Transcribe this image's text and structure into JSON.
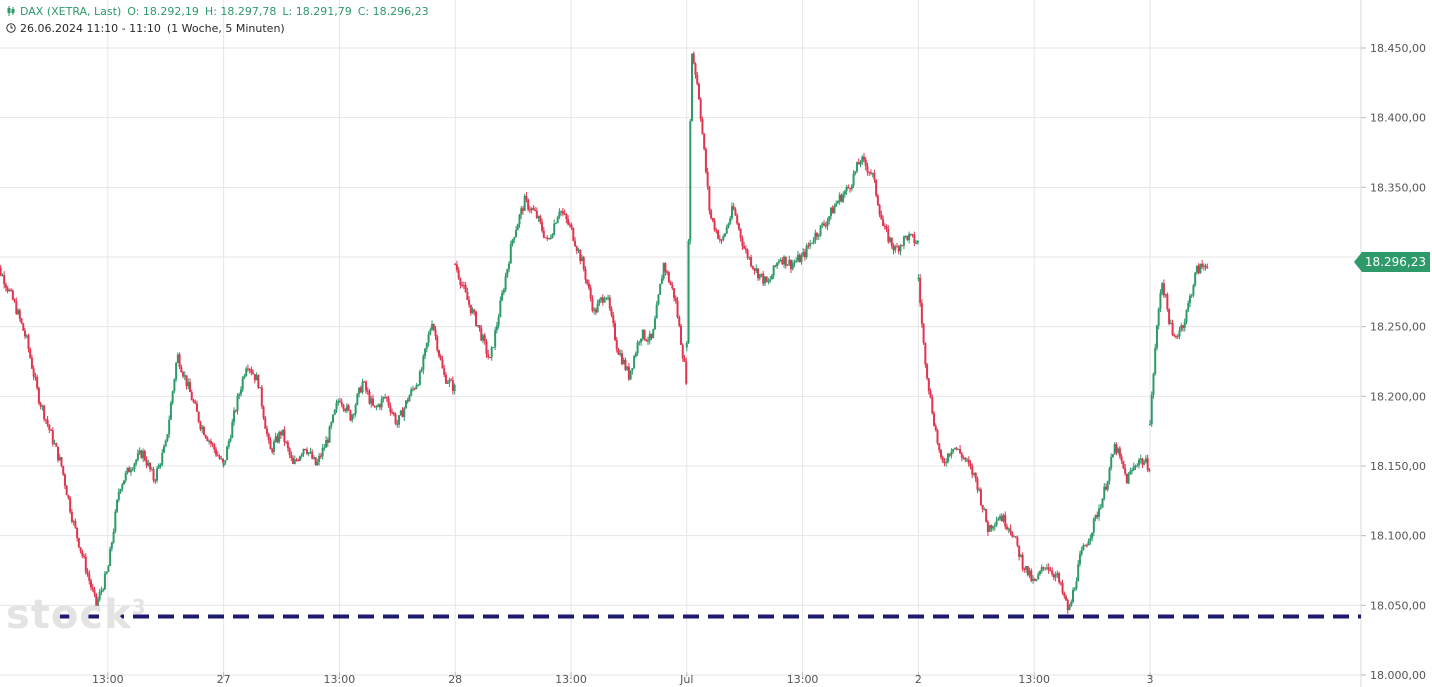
{
  "header": {
    "instrument": "DAX (XETRA, Last)",
    "open": "O: 18.292,19",
    "high": "H: 18.297,78",
    "low": "L: 18.291,79",
    "close": "C: 18.296,23",
    "range": "26.06.2024 11:10 - 11:10",
    "timeframe": "(1 Woche, 5 Minuten)",
    "icon_instrument": "candlestick-icon",
    "icon_time": "clock-icon"
  },
  "watermark": "stock",
  "last_price_label": "18.296,23",
  "colors": {
    "up": "#2e9a6a",
    "down": "#e0344f",
    "support_line": "#1e1a6e",
    "grid": "#e6e6e6"
  },
  "chart_data": {
    "type": "candlestick",
    "ylim": [
      18000,
      18470
    ],
    "y_ticks": [
      "18.000,00",
      "18.050,00",
      "18.100,00",
      "18.150,00",
      "18.200,00",
      "18.250,00",
      "18.300,00",
      "18.350,00",
      "18.400,00",
      "18.450,00"
    ],
    "y_tick_values": [
      18000,
      18050,
      18100,
      18150,
      18200,
      18250,
      18300,
      18350,
      18400,
      18450
    ],
    "x_ticks": [
      "13:00",
      "27",
      "13:00",
      "28",
      "13:00",
      "Jul",
      "13:00",
      "2",
      "13:00",
      "3"
    ],
    "x_tick_days": [
      0.5,
      1,
      1.5,
      2,
      2.5,
      3,
      3.5,
      4,
      4.5,
      5
    ],
    "support_level": 18042,
    "last_price": 18296.23,
    "session_breaks": [
      2,
      3,
      4,
      5
    ],
    "series": [
      {
        "path_days": [
          0,
          0.05,
          0.1,
          0.15,
          0.2,
          0.25,
          0.3,
          0.35,
          0.4,
          0.45,
          0.5,
          0.55,
          0.6,
          0.65,
          0.7,
          0.75,
          0.8,
          0.85,
          0.9,
          0.95,
          1.0
        ],
        "path_values": [
          18300,
          18285,
          18265,
          18240,
          18200,
          18175,
          18150,
          18110,
          18080,
          18050,
          18075,
          18135,
          18150,
          18160,
          18140,
          18165,
          18230,
          18205,
          18180,
          18165,
          18150
        ]
      },
      {
        "path_days": [
          1.0,
          1.05,
          1.1,
          1.15,
          1.2,
          1.25,
          1.3,
          1.35,
          1.4,
          1.45,
          1.5,
          1.55,
          1.6,
          1.65,
          1.7,
          1.75,
          1.8,
          1.85,
          1.9,
          1.95,
          2.0
        ],
        "path_values": [
          18150,
          18190,
          18225,
          18210,
          18160,
          18175,
          18150,
          18165,
          18150,
          18170,
          18200,
          18185,
          18210,
          18190,
          18200,
          18180,
          18200,
          18215,
          18255,
          18215,
          18205
        ]
      },
      {
        "path_days": [
          2.0,
          2.05,
          2.1,
          2.15,
          2.2,
          2.25,
          2.3,
          2.35,
          2.4,
          2.45,
          2.5,
          2.55,
          2.6,
          2.65,
          2.7,
          2.75,
          2.8,
          2.85,
          2.9,
          2.95,
          3.0
        ],
        "path_values": [
          18295,
          18270,
          18250,
          18225,
          18270,
          18315,
          18340,
          18330,
          18310,
          18335,
          18320,
          18295,
          18260,
          18275,
          18235,
          18215,
          18245,
          18240,
          18295,
          18270,
          18210
        ]
      },
      {
        "path_days": [
          3.0,
          3.02,
          3.05,
          3.1,
          3.15,
          3.2,
          3.25,
          3.3,
          3.35,
          3.4,
          3.45,
          3.5,
          3.55,
          3.6,
          3.65,
          3.7,
          3.75,
          3.8,
          3.85,
          3.9,
          3.95,
          4.0
        ],
        "path_values": [
          18235,
          18450,
          18420,
          18330,
          18310,
          18335,
          18305,
          18290,
          18280,
          18300,
          18295,
          18300,
          18315,
          18325,
          18340,
          18350,
          18370,
          18360,
          18320,
          18305,
          18315,
          18310
        ]
      },
      {
        "path_days": [
          4.0,
          4.02,
          4.05,
          4.1,
          4.15,
          4.2,
          4.25,
          4.3,
          4.35,
          4.4,
          4.45,
          4.5,
          4.55,
          4.6,
          4.65,
          4.7,
          4.75,
          4.8,
          4.85,
          4.9,
          4.95,
          5.0
        ],
        "path_values": [
          18285,
          18240,
          18200,
          18150,
          18165,
          18155,
          18140,
          18105,
          18115,
          18105,
          18080,
          18065,
          18080,
          18070,
          18045,
          18085,
          18105,
          18130,
          18165,
          18140,
          18155,
          18150
        ]
      },
      {
        "path_days": [
          5.0,
          5.02,
          5.05,
          5.1,
          5.15,
          5.2,
          5.25
        ],
        "path_values": [
          18180,
          18230,
          18285,
          18240,
          18255,
          18290,
          18296.23
        ]
      }
    ]
  }
}
